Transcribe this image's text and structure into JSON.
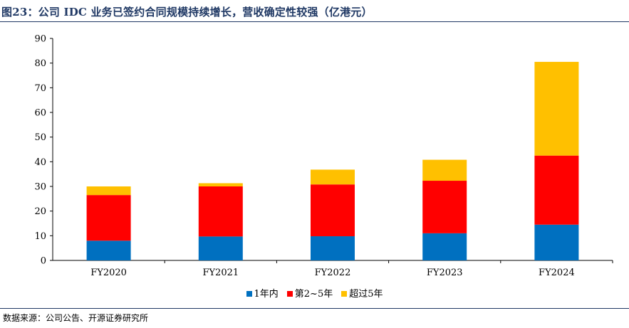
{
  "title": "图23：公司 IDC 业务已签约合同规模持续增长，营收确定性较强（亿港元）",
  "source": "数据来源：公司公告、开源证券研究所",
  "colors": {
    "title": "#1f3864",
    "series": [
      "#0070c0",
      "#ff0000",
      "#ffc000"
    ]
  },
  "chart_data": {
    "type": "bar",
    "stacked": true,
    "title": "图23：公司 IDC 业务已签约合同规模持续增长，营收确定性较强（亿港元）",
    "xlabel": "",
    "ylabel": "",
    "ylim": [
      0,
      90
    ],
    "yticks": [
      0,
      10,
      20,
      30,
      40,
      50,
      60,
      70,
      80,
      90
    ],
    "grid": false,
    "legend": "bottom",
    "categories": [
      "FY2020",
      "FY2021",
      "FY2022",
      "FY2023",
      "FY2024"
    ],
    "series": [
      {
        "name": "1年内",
        "values": [
          8.0,
          9.7,
          9.8,
          11.0,
          14.5
        ]
      },
      {
        "name": "第2~5年",
        "values": [
          18.5,
          20.3,
          21.0,
          21.3,
          28.0
        ]
      },
      {
        "name": "超过5年",
        "values": [
          3.5,
          1.3,
          6.0,
          8.5,
          38.0
        ]
      }
    ]
  }
}
